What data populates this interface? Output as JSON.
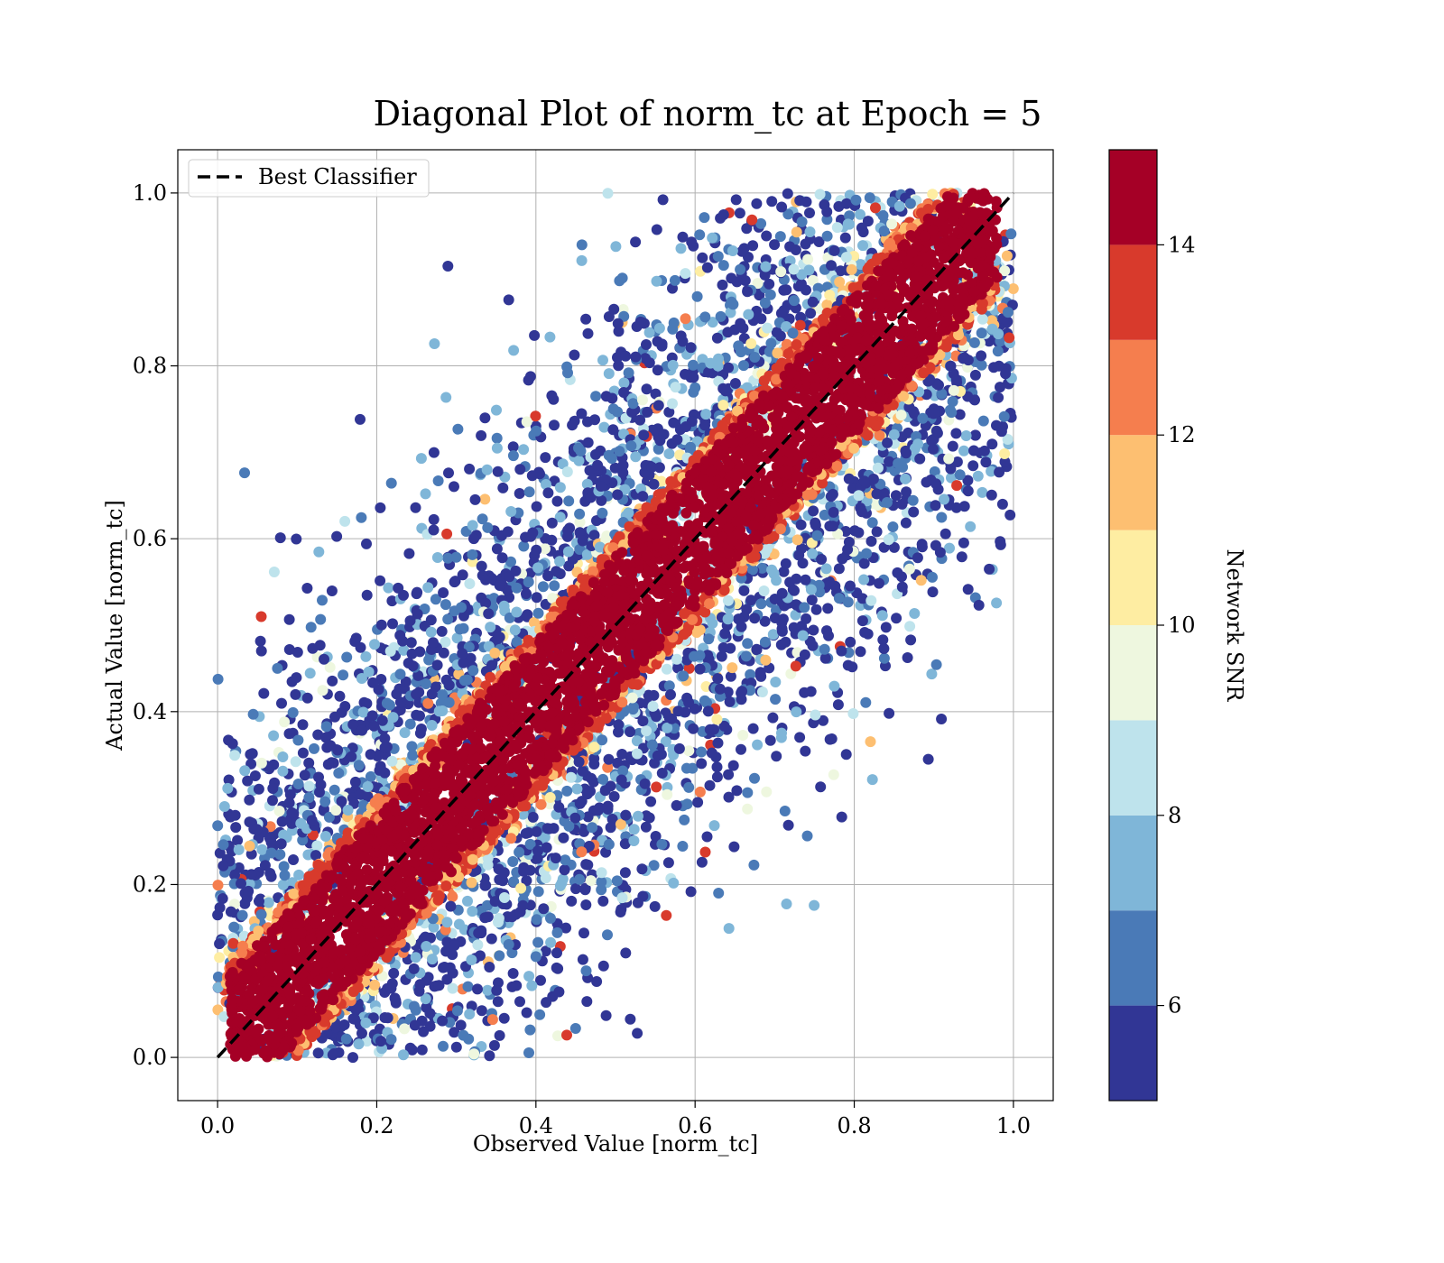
{
  "chart_data": {
    "type": "scatter",
    "title": "Diagonal Plot of norm_tc at Epoch = 5",
    "xlabel": "Observed Value [norm_tc]",
    "ylabel": "Actual Value [norm_tc]",
    "xlim": [
      -0.05,
      1.05
    ],
    "ylim": [
      -0.05,
      1.05
    ],
    "xticks": [
      "0.0",
      "0.2",
      "0.4",
      "0.6",
      "0.8",
      "1.0"
    ],
    "yticks": [
      "0.0",
      "0.2",
      "0.4",
      "0.6",
      "0.8",
      "1.0"
    ],
    "grid": true,
    "legend": {
      "placement": "upper-left",
      "entries": [
        "Best Classifier"
      ]
    },
    "reference_line": {
      "name": "Best Classifier",
      "style": "dashed",
      "color": "#000000",
      "x": [
        0,
        1
      ],
      "y": [
        0,
        1
      ]
    },
    "color_by": {
      "label": "Network SNR",
      "range": [
        5,
        15
      ],
      "tick_values": [
        6,
        8,
        10,
        12,
        14
      ],
      "tick_labels": [
        "6",
        "8",
        "10",
        "12",
        "14"
      ],
      "bins": [
        {
          "from": 5,
          "to": 6,
          "color": "#313695"
        },
        {
          "from": 6,
          "to": 7,
          "color": "#4a7ab7"
        },
        {
          "from": 7,
          "to": 8,
          "color": "#7fb6d8"
        },
        {
          "from": 8,
          "to": 9,
          "color": "#bee3ec"
        },
        {
          "from": 9,
          "to": 10,
          "color": "#eef7df"
        },
        {
          "from": 10,
          "to": 11,
          "color": "#feeda2"
        },
        {
          "from": 11,
          "to": 12,
          "color": "#fdbf71"
        },
        {
          "from": 12,
          "to": 13,
          "color": "#f57e4e"
        },
        {
          "from": 13,
          "to": 14,
          "color": "#d83a2c"
        },
        {
          "from": 14,
          "to": 15,
          "color": "#a50026"
        }
      ]
    },
    "distribution": {
      "high_snr_band": {
        "snr": 15,
        "center": "y = x",
        "half_width": 0.08,
        "description_range": [
          0,
          1
        ]
      },
      "scatter_snr_range": [
        5,
        11
      ],
      "scatter_extent": "points spread away from the diagonal, densest near it"
    }
  }
}
